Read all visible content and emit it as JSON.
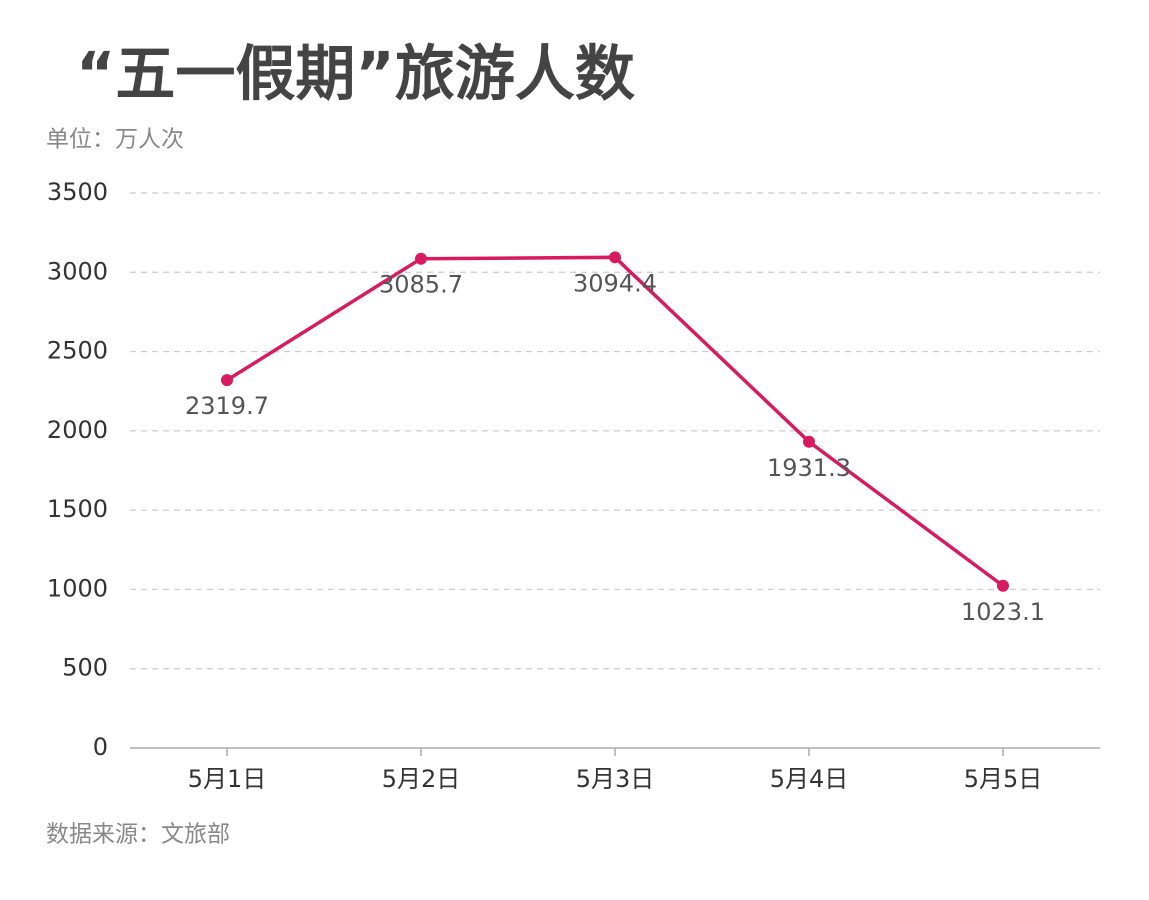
{
  "chart_data": {
    "type": "line",
    "title": "“五一假期”旅游人数",
    "subtitle": "单位：万人次",
    "source": "数据来源：文旅部",
    "categories": [
      "5月1日",
      "5月2日",
      "5月3日",
      "5月4日",
      "5月5日"
    ],
    "values": [
      2319.7,
      3085.7,
      3094.4,
      1931.3,
      1023.1
    ],
    "color": "#d81b60",
    "ylim": [
      0,
      3500
    ],
    "yticks": [
      0,
      500,
      1000,
      1500,
      2000,
      2500,
      3000,
      3500
    ],
    "grid": true
  }
}
